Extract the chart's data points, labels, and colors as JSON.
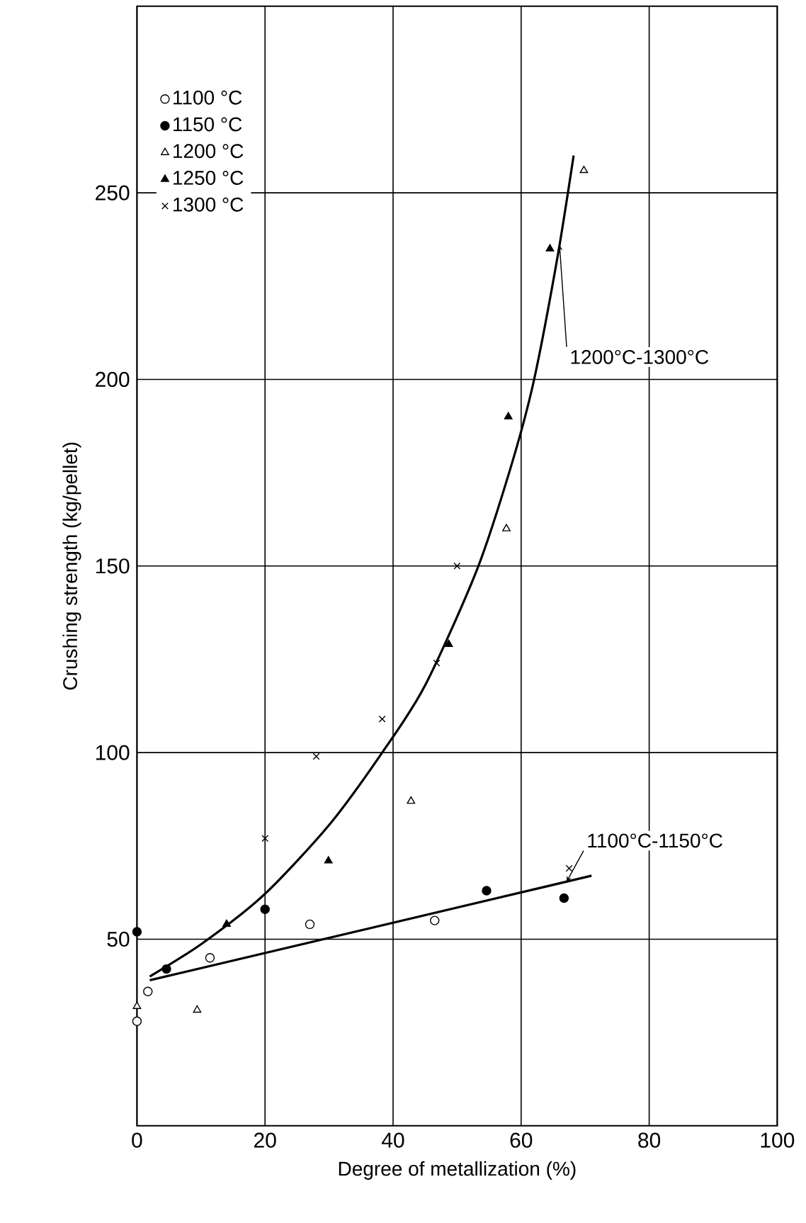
{
  "chart_data": {
    "type": "scatter",
    "xlabel": "Degree of metallization   (%)",
    "ylabel": "Crushing strength   (kg/pellet)",
    "xlim": [
      0,
      100
    ],
    "ylim": [
      0,
      300
    ],
    "xticks": [
      0,
      20,
      40,
      60,
      80,
      100
    ],
    "yticks": [
      50,
      100,
      150,
      200,
      250
    ],
    "grid": true,
    "legend": "top left",
    "series": [
      {
        "name": "1100 °C",
        "color": "#ffffff",
        "marker": "circle",
        "x": [
          0,
          1.7,
          11.4,
          27,
          46.5
        ],
        "values": [
          28,
          36,
          45,
          54,
          55
        ]
      },
      {
        "name": "1150 °C",
        "color": "#000000",
        "marker": "circle",
        "x": [
          0,
          4.6,
          20,
          54.6,
          66.7
        ],
        "values": [
          52,
          42,
          58,
          63,
          61
        ]
      },
      {
        "name": "1200 °C",
        "color": "#ffffff",
        "marker": "triangle",
        "x": [
          0,
          9.4,
          42.8,
          57.7,
          69.8
        ],
        "values": [
          32,
          31,
          87,
          160,
          256
        ]
      },
      {
        "name": "1250 °C",
        "color": "#000000",
        "marker": "triangle",
        "x": [
          14,
          29.9,
          48.7,
          58,
          64.5
        ],
        "values": [
          54,
          71,
          129,
          190,
          235
        ]
      },
      {
        "name": "1300 °C",
        "color": "#000000",
        "marker": "cross",
        "x": [
          20,
          28,
          38.3,
          46.8,
          50,
          67.5
        ],
        "values": [
          77,
          99,
          109,
          124,
          150,
          69
        ]
      },
      {
        "type": "line",
        "color": "#000000",
        "marker": "none",
        "x": [
          2,
          10.3,
          19.9,
          30.2,
          38.3,
          45,
          53.1,
          58.3,
          61.9,
          65.6,
          68.2
        ],
        "values": [
          40,
          49,
          62,
          81,
          100,
          118,
          149,
          176,
          199,
          232,
          260
        ]
      },
      {
        "type": "line",
        "color": "#000000",
        "marker": "none",
        "x": [
          2,
          71
        ],
        "values": [
          39,
          67
        ]
      }
    ],
    "annotations": [
      {
        "text": "1200°C-1300°C",
        "x": 66,
        "y": 236
      },
      {
        "text": "1100°C-1150°C",
        "x": 67.1,
        "y": 65.4
      }
    ]
  }
}
